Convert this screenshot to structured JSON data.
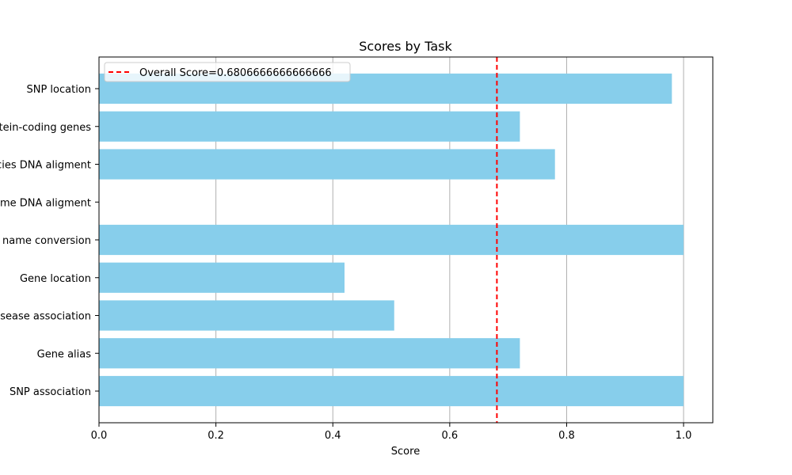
{
  "chart_data": {
    "type": "bar",
    "orientation": "horizontal",
    "title": "Scores by Task",
    "xlabel": "Score",
    "ylabel": "",
    "xlim": [
      0,
      1.05
    ],
    "xticks": [
      "0.0",
      "0.2",
      "0.4",
      "0.6",
      "0.8",
      "1.0"
    ],
    "grid": "x",
    "legend_position": "top-left",
    "categories": [
      "SNP location",
      "Protein-coding genes",
      "Multi-species DNA aligment",
      "Human genome DNA aligment",
      "Gene name conversion",
      "Gene location",
      "Gene disease association",
      "Gene alias",
      "SNP association"
    ],
    "values": [
      0.98,
      0.72,
      0.78,
      0.0,
      1.0,
      0.42,
      0.505,
      0.72,
      1.0
    ],
    "bar_color": "#87ceeb",
    "reference_line": {
      "label": "Overall Score=0.6806666666666666",
      "value": 0.6806666666666666,
      "color": "#ff0000",
      "style": "dashed"
    }
  }
}
